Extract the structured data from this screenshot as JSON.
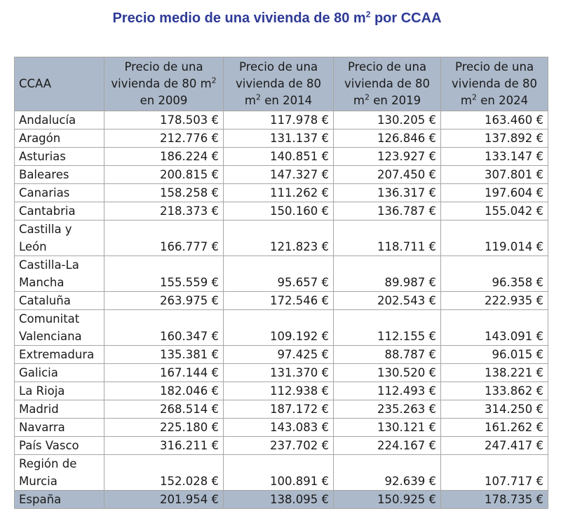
{
  "title": {
    "prefix": "Precio medio de una vivienda de 80 m",
    "sup": "2",
    "suffix": " por CCAA"
  },
  "table": {
    "headers": [
      {
        "line1": "CCAA"
      },
      {
        "pre": "Precio de una vivienda de 80 m",
        "sup": "2",
        "post": " en 2009"
      },
      {
        "pre": "Precio de una vivienda de 80 m",
        "sup": "2",
        "post": " en 2014"
      },
      {
        "pre": "Precio de una vivienda de 80 m",
        "sup": "2",
        "post": " en 2019"
      },
      {
        "pre": "Precio de una vivienda de 80 m",
        "sup": "2",
        "post": " en 2024"
      }
    ],
    "rows": [
      {
        "ccaa": "Andalucía",
        "y2009": "178.503 €",
        "y2014": "117.978 €",
        "y2019": "130.205 €",
        "y2024": "163.460 €"
      },
      {
        "ccaa": "Aragón",
        "y2009": "212.776 €",
        "y2014": "131.137 €",
        "y2019": "126.846 €",
        "y2024": "137.892 €"
      },
      {
        "ccaa": "Asturias",
        "y2009": "186.224 €",
        "y2014": "140.851 €",
        "y2019": "123.927 €",
        "y2024": "133.147 €"
      },
      {
        "ccaa": "Baleares",
        "y2009": "200.815 €",
        "y2014": "147.327 €",
        "y2019": "207.450 €",
        "y2024": "307.801 €"
      },
      {
        "ccaa": "Canarias",
        "y2009": "158.258 €",
        "y2014": "111.262 €",
        "y2019": "136.317 €",
        "y2024": "197.604 €"
      },
      {
        "ccaa": "Cantabria",
        "y2009": "218.373 €",
        "y2014": "150.160 €",
        "y2019": "136.787 €",
        "y2024": "155.042 €"
      },
      {
        "ccaa": "Castilla y León",
        "y2009": "166.777 €",
        "y2014": "121.823 €",
        "y2019": "118.711 €",
        "y2024": "119.014 €"
      },
      {
        "ccaa": "Castilla-La Mancha",
        "y2009": "155.559 €",
        "y2014": "95.657 €",
        "y2019": "89.987 €",
        "y2024": "96.358 €"
      },
      {
        "ccaa": "Cataluña",
        "y2009": "263.975 €",
        "y2014": "172.546 €",
        "y2019": "202.543 €",
        "y2024": "222.935 €"
      },
      {
        "ccaa": "Comunitat Valenciana",
        "y2009": "160.347 €",
        "y2014": "109.192 €",
        "y2019": "112.155 €",
        "y2024": "143.091 €"
      },
      {
        "ccaa": "Extremadura",
        "y2009": "135.381 €",
        "y2014": "97.425 €",
        "y2019": "88.787 €",
        "y2024": "96.015 €"
      },
      {
        "ccaa": "Galicia",
        "y2009": "167.144 €",
        "y2014": "131.370 €",
        "y2019": "130.520 €",
        "y2024": "138.221 €"
      },
      {
        "ccaa": "La Rioja",
        "y2009": "182.046 €",
        "y2014": "112.938 €",
        "y2019": "112.493 €",
        "y2024": "133.862 €"
      },
      {
        "ccaa": "Madrid",
        "y2009": "268.514 €",
        "y2014": "187.172 €",
        "y2019": "235.263 €",
        "y2024": "314.250 €"
      },
      {
        "ccaa": "Navarra",
        "y2009": "225.180 €",
        "y2014": "143.083 €",
        "y2019": "130.121 €",
        "y2024": "161.262 €"
      },
      {
        "ccaa": "País Vasco",
        "y2009": "316.211 €",
        "y2014": "237.702 €",
        "y2019": "224.167 €",
        "y2024": "247.417 €"
      },
      {
        "ccaa": "Región de Murcia",
        "y2009": "152.028 €",
        "y2014": "100.891 €",
        "y2019": "92.639 €",
        "y2024": "107.717 €"
      }
    ],
    "total": {
      "ccaa": "España",
      "y2009": "201.954 €",
      "y2014": "138.095 €",
      "y2019": "150.925 €",
      "y2024": "178.735 €"
    }
  },
  "colors": {
    "title": "#2e3a96",
    "header_bg": "#acb9ca",
    "total_bg": "#acb9ca",
    "border": "#a6a6a6"
  }
}
